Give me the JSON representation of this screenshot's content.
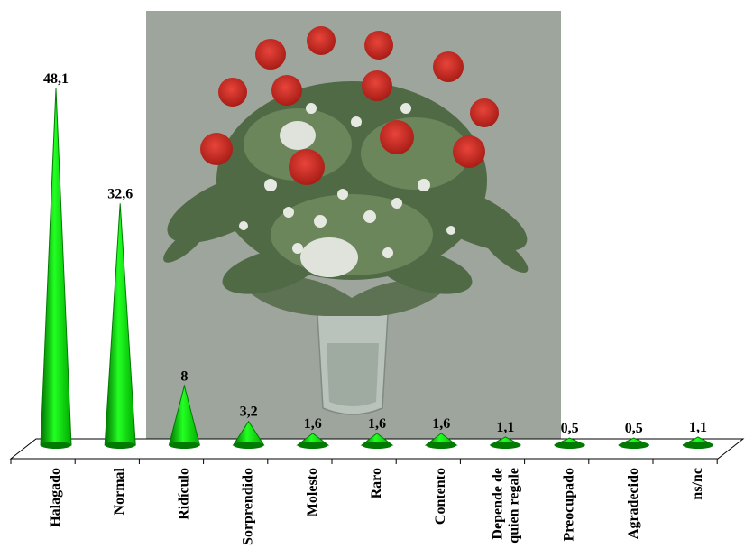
{
  "chart_data": {
    "type": "bar",
    "categories": [
      "Halagado",
      "Normal",
      "Ridículo",
      "Sorprendido",
      "Molesto",
      "Raro",
      "Contento",
      "Depende de quien regale",
      "Preocupado",
      "Agradecido",
      "ns/nc"
    ],
    "category_lines": [
      [
        "Halagado"
      ],
      [
        "Normal"
      ],
      [
        "Ridículo"
      ],
      [
        "Sorprendido"
      ],
      [
        "Molesto"
      ],
      [
        "Raro"
      ],
      [
        "Contento"
      ],
      [
        "Depende de",
        "quien regale"
      ],
      [
        "Preocupado"
      ],
      [
        "Agradecido"
      ],
      [
        "ns/nc"
      ]
    ],
    "values": [
      48.1,
      32.6,
      8,
      3.2,
      1.6,
      1.6,
      1.6,
      1.1,
      0.5,
      0.5,
      1.1
    ],
    "value_labels": [
      "48,1",
      "32,6",
      "8",
      "3,2",
      "1,6",
      "1,6",
      "1,6",
      "1,1",
      "0,5",
      "0,5",
      "1,1"
    ],
    "bar_shape": "cone",
    "bar_color": "#00ee00",
    "bar_shade_color": "#007a00",
    "ylim": [
      0,
      50
    ],
    "grid": false,
    "legend": "none",
    "background_image": "rose-bouquet"
  }
}
